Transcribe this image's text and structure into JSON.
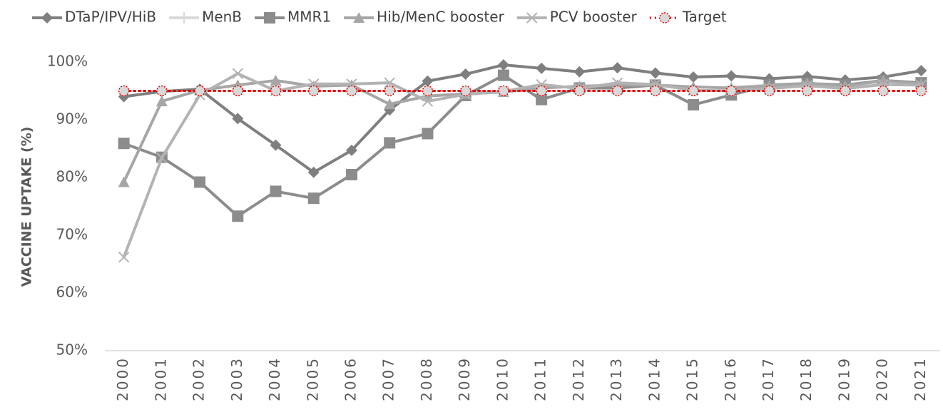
{
  "chart_data": {
    "type": "line",
    "y_label": "VACCINE UPTAKE (%)",
    "categories": [
      "2000",
      "2001",
      "2002",
      "2003",
      "2004",
      "2005",
      "2006",
      "2007",
      "2008",
      "2009",
      "2010",
      "2011",
      "2012",
      "2013",
      "2014",
      "2015",
      "2016",
      "2017",
      "2018",
      "2019",
      "2020",
      "2021"
    ],
    "ylim": [
      50,
      100
    ],
    "yticks": [
      {
        "value": 50,
        "label": "50%"
      },
      {
        "value": 60,
        "label": "60%"
      },
      {
        "value": 70,
        "label": "70%"
      },
      {
        "value": 80,
        "label": "80%"
      },
      {
        "value": 90,
        "label": "90%"
      },
      {
        "value": 100,
        "label": "100%"
      }
    ],
    "grid": false,
    "legend": "top",
    "series": [
      {
        "name": "DTaP/IPV/HiB",
        "color": "#7f7f7f",
        "marker": "diamond",
        "dash": "solid",
        "values": [
          94.0,
          94.9,
          95.3,
          90.2,
          85.6,
          80.9,
          84.7,
          91.7,
          96.7,
          97.9,
          99.5,
          98.9,
          98.3,
          99.0,
          98.1,
          97.4,
          97.6,
          97.1,
          97.5,
          96.9,
          97.4,
          98.5
        ]
      },
      {
        "name": "MenB",
        "color": "#d9d9d9",
        "marker": "plus",
        "dash": "solid",
        "values": [
          null,
          null,
          null,
          null,
          null,
          null,
          null,
          null,
          null,
          null,
          null,
          null,
          null,
          null,
          null,
          null,
          95.6,
          96.0,
          96.3,
          95.7,
          96.2,
          96.3
        ]
      },
      {
        "name": "MMR1",
        "color": "#8c8c8c",
        "marker": "square",
        "dash": "solid",
        "values": [
          85.9,
          83.5,
          79.2,
          73.3,
          77.6,
          76.4,
          80.5,
          86.0,
          87.6,
          94.2,
          97.7,
          93.5,
          95.5,
          95.5,
          96.0,
          92.6,
          94.3,
          96.0,
          96.3,
          96.0,
          96.8,
          96.4
        ]
      },
      {
        "name": "Hib/MenC booster",
        "color": "#a6a6a6",
        "marker": "triangle",
        "dash": "solid",
        "values": [
          79.2,
          93.2,
          95.1,
          96.0,
          96.8,
          95.8,
          96.0,
          92.7,
          94.1,
          94.5,
          94.8,
          95.5,
          95.8,
          96.0,
          96.0,
          95.7,
          95.5,
          95.9,
          96.3,
          95.8,
          96.8,
          96.2
        ]
      },
      {
        "name": "PCV booster",
        "color": "#b3b3b3",
        "marker": "x",
        "dash": "solid",
        "values": [
          66.2,
          83.4,
          94.3,
          98.0,
          95.0,
          96.2,
          96.2,
          96.4,
          93.2,
          94.4,
          94.9,
          96.1,
          95.4,
          96.4,
          96.1,
          95.1,
          95.0,
          95.4,
          95.9,
          95.4,
          96.1,
          96.0
        ]
      },
      {
        "name": "Target",
        "color": "#e00000",
        "marker": "circle",
        "dash": "dotted",
        "values": [
          95,
          95,
          95,
          95,
          95,
          95,
          95,
          95,
          95,
          95,
          95,
          95,
          95,
          95,
          95,
          95,
          95,
          95,
          95,
          95,
          95,
          95
        ]
      }
    ]
  }
}
